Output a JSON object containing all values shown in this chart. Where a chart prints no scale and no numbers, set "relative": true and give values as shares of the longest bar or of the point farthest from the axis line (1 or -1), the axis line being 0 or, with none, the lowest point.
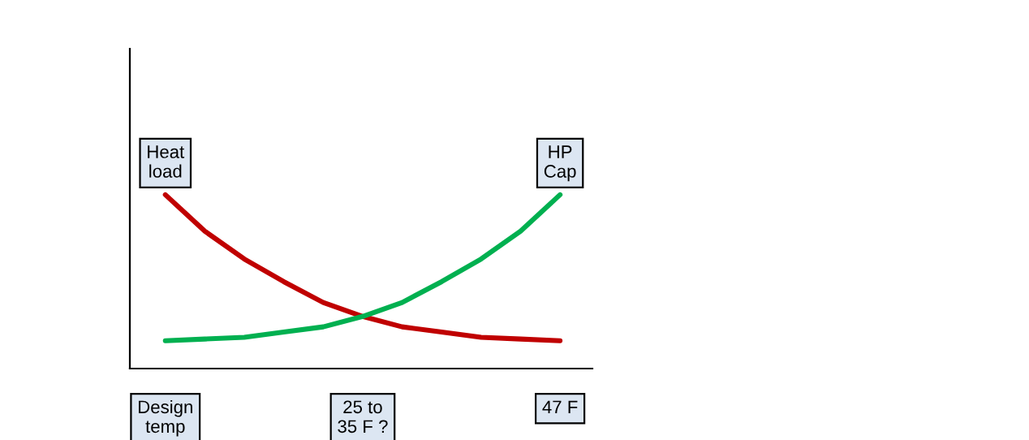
{
  "chart_data": {
    "type": "line",
    "relative": true,
    "categories": [
      "Design\ntemp",
      null,
      null,
      null,
      null,
      "25 to\n35 F ?",
      null,
      null,
      null,
      null,
      "47 F"
    ],
    "series": [
      {
        "name": "Heat\nload",
        "color": "#c00000",
        "values": [
          1,
          0.79,
          0.63,
          0.5,
          0.38,
          0.3,
          0.24,
          0.21,
          0.18,
          0.17,
          0.16
        ]
      },
      {
        "name": "HP\nCap",
        "color": "#00b050",
        "values": [
          0.16,
          0.17,
          0.18,
          0.21,
          0.24,
          0.3,
          0.38,
          0.5,
          0.63,
          0.79,
          1
        ]
      }
    ],
    "grid": false,
    "legend": false,
    "marker": "none",
    "line_style": "solid"
  }
}
